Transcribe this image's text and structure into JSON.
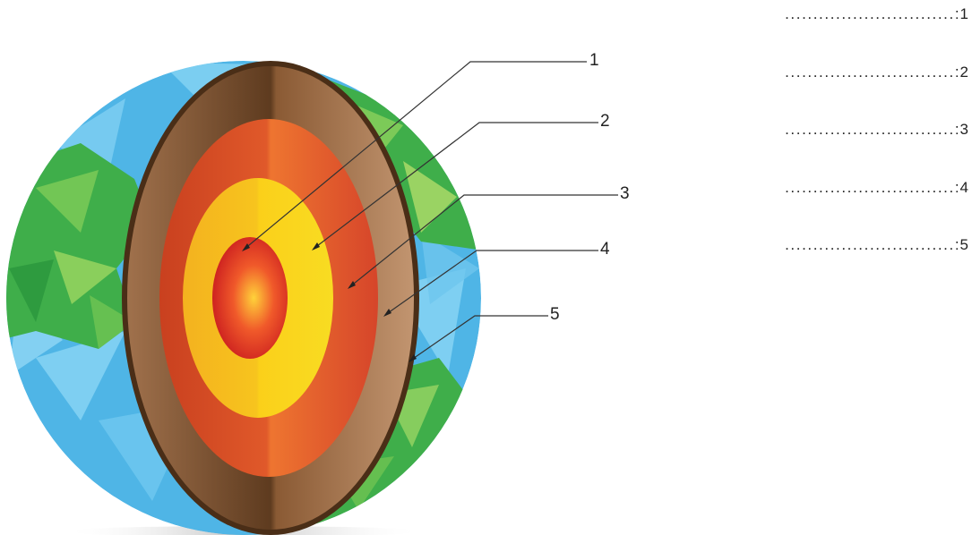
{
  "diagram": {
    "callouts": [
      {
        "number": "1",
        "color": "#d12a1f"
      },
      {
        "number": "2",
        "color": "#f7c41e"
      },
      {
        "number": "3",
        "color": "#d9622a"
      },
      {
        "number": "4",
        "color": "#b48660"
      },
      {
        "number": "5",
        "color": "#5a3a1f"
      }
    ],
    "colors": {
      "ocean": "#4fb5e6",
      "land": "#3fae4a",
      "crust_edge": "#4a2e17"
    }
  },
  "answers": [
    {
      "dots": "..............................",
      "label": ":1"
    },
    {
      "dots": "..............................",
      "label": ":2"
    },
    {
      "dots": "..............................",
      "label": ":3"
    },
    {
      "dots": "..............................",
      "label": ":4"
    },
    {
      "dots": "..............................",
      "label": ":5"
    }
  ]
}
